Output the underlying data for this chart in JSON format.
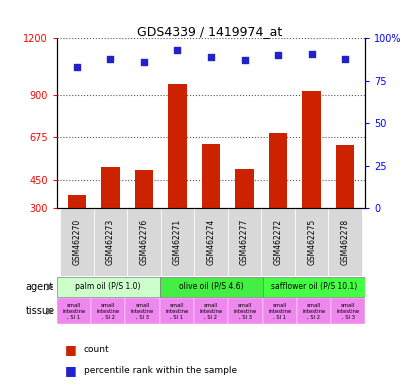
{
  "title": "GDS4339 / 1419974_at",
  "samples": [
    "GSM462270",
    "GSM462273",
    "GSM462276",
    "GSM462271",
    "GSM462274",
    "GSM462277",
    "GSM462272",
    "GSM462275",
    "GSM462278"
  ],
  "counts": [
    370,
    520,
    500,
    960,
    640,
    510,
    700,
    920,
    635
  ],
  "percentiles": [
    83,
    88,
    86,
    93,
    89,
    87,
    90,
    91,
    88
  ],
  "ylim_left": [
    300,
    1200
  ],
  "ylim_right": [
    0,
    100
  ],
  "yticks_left": [
    300,
    450,
    675,
    900,
    1200
  ],
  "yticks_right": [
    0,
    25,
    50,
    75,
    100
  ],
  "bar_color": "#cc2200",
  "dot_color": "#2222cc",
  "agent_groups": [
    {
      "label": "palm oil (P/S 1.0)",
      "color": "#ccffcc",
      "start": 0,
      "end": 3
    },
    {
      "label": "olive oil (P/S 4.6)",
      "color": "#44ee44",
      "start": 3,
      "end": 6
    },
    {
      "label": "safflower oil (P/S 10.1)",
      "color": "#44ff44",
      "start": 6,
      "end": 9
    }
  ],
  "tissue_labels": [
    "small\nintestine\n, SI 1",
    "small\nintestine\n, SI 2",
    "small\nintestine\n, SI 3",
    "small\nintestine\n, SI 1",
    "small\nintestine\n, SI 2",
    "small\nintestine\n, SI 3",
    "small\nintestine\n, SI 1",
    "small\nintestine\n, SI 2",
    "small\nintestine\n, SI 3"
  ],
  "tissue_color": "#ee88ee",
  "agent_label": "agent",
  "tissue_label": "tissue",
  "legend_count_label": "count",
  "legend_pct_label": "percentile rank within the sample",
  "background_color": "#ffffff",
  "grid_color": "#555555",
  "bar_width": 0.55
}
